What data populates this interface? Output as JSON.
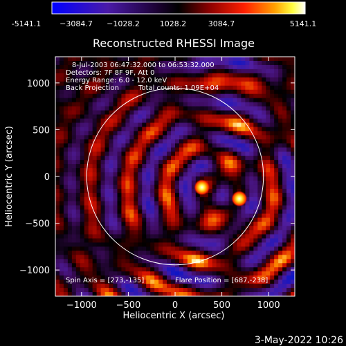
{
  "colorbar": {
    "ticks": [
      "-5141.1",
      "−3084.7",
      "−1028.2",
      "1028.2",
      "3084.7",
      "5141.1"
    ],
    "range": [
      -5141.1,
      5141.1
    ],
    "colormap": "blue-purple-black-red-yellow-white"
  },
  "chart_data": {
    "type": "heatmap",
    "title": "Reconstructed RHESSI Image",
    "xlabel": "Heliocentric X (arcsec)",
    "ylabel": "Heliocentric Y (arcsec)",
    "xlim": [
      -1280,
      1280
    ],
    "ylim": [
      -1280,
      1280
    ],
    "xticks": [
      -1000,
      -500,
      0,
      500,
      1000
    ],
    "yticks": [
      -1000,
      -500,
      0,
      500,
      1000
    ],
    "xtick_labels": [
      "−1000",
      "−500",
      "0",
      "500",
      "1000"
    ],
    "ytick_labels": [
      "−1000",
      "−500",
      "0",
      "500",
      "1000"
    ],
    "solar_limb_radius_arcsec": 945,
    "sources": [
      {
        "x": 287,
        "y": -116,
        "peak": 5141.1
      },
      {
        "x": 687,
        "y": -238,
        "peak": 4700
      }
    ],
    "annotations": [
      "8-Jul-2003 06:47:32.000 to 06:53:32.000",
      "Detectors: 7F 8F 9F, Att 0",
      "Energy Range: 6.0 - 12.0 keV",
      "Back Projection",
      "Total counts: 1.09E+04"
    ],
    "footer_left": "Spin Axis = [273,-135]",
    "footer_right": "Flare Position = [687,-238]"
  },
  "timestamp": "3-May-2022 10:26",
  "colors": {
    "background": "#000000",
    "foreground": "#ffffff"
  }
}
